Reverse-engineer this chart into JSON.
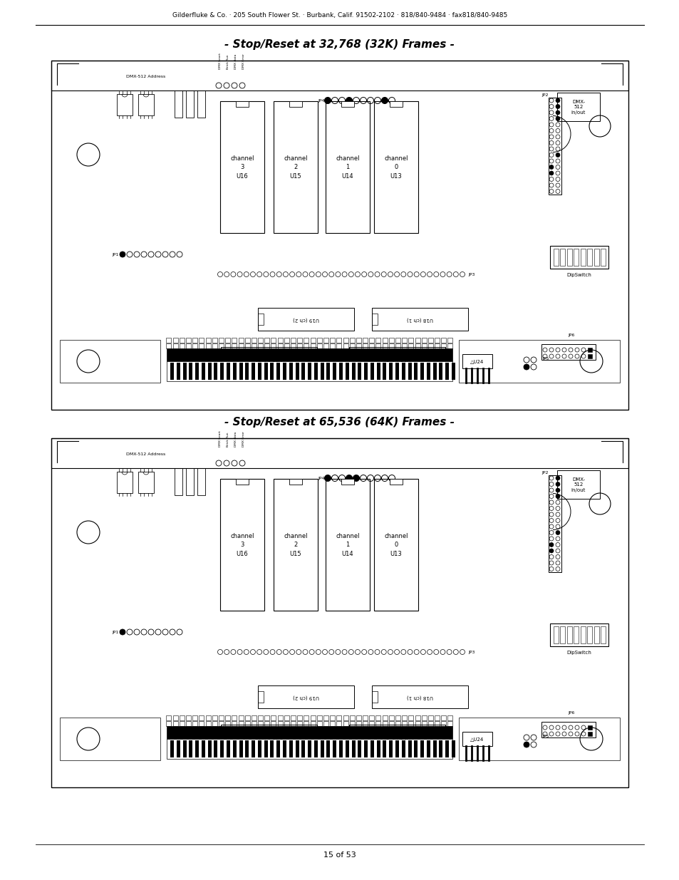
{
  "header_text": "Gilderfluke & Co. · 205 South Flower St. · Burbank, Calif. 91502-2102 · 818/840-9484 · fax818/840-9485",
  "footer_text": "15 of 53",
  "title1": "- Stop/Reset at 32,768 (32K) Frames -",
  "title2": "- Stop/Reset at 65,536 (64K) Frames -",
  "bg_color": "#ffffff",
  "line_color": "#000000",
  "jp4_filled_32k": [
    0,
    3,
    8
  ],
  "jp4_filled_64k": [
    0,
    3,
    4
  ]
}
